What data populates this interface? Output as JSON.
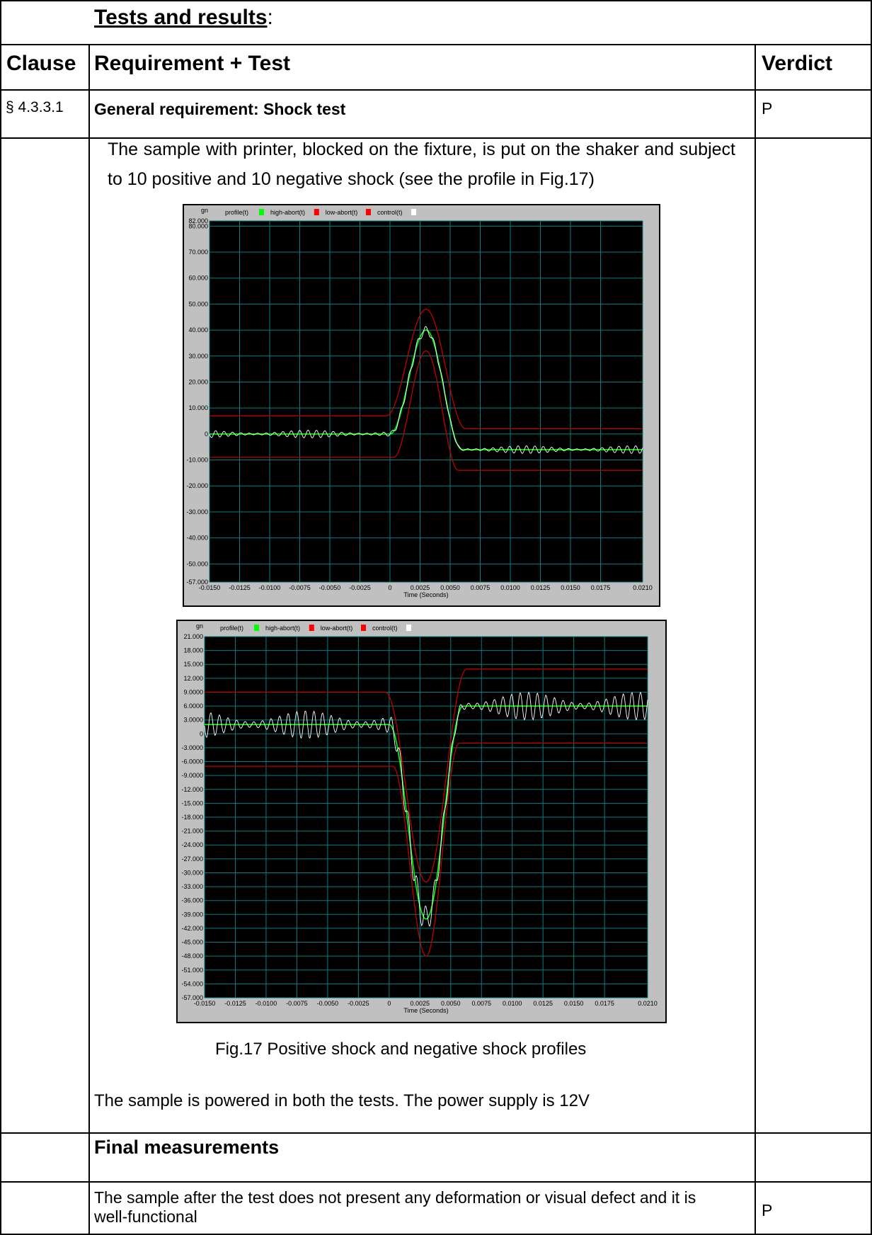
{
  "section_title": "Tests and results",
  "section_title_colon": ":",
  "headers": {
    "clause": "Clause",
    "requirement": "Requirement + Test",
    "verdict": "Verdict"
  },
  "row1": {
    "clause": "§ 4.3.3.1",
    "requirement": "General requirement: Shock test",
    "verdict": "P"
  },
  "row2": {
    "intro": "The sample with printer, blocked on the fixture, is put on the shaker and subject to 10 positive and 10 negative shock (see the profile in Fig.17)",
    "caption": "Fig.17 Positive shock and negative shock profiles",
    "power_note": "The sample is powered in both the tests. The power supply is 12V"
  },
  "row3": {
    "requirement": "Final measurements"
  },
  "row4": {
    "requirement": "The sample after the test does not present any deformation or visual defect and it is well-functional",
    "verdict": "P"
  },
  "chart_data": [
    {
      "type": "line",
      "title": "",
      "ylabel_unit": "gn",
      "xlabel": "Time (Seconds)",
      "legend": [
        "profile(t)",
        "high-abort(t)",
        "low-abort(t)",
        "control(t)"
      ],
      "legend_colors": [
        "#00ff00",
        "#ff0000",
        "#ff0000",
        "#ffffff"
      ],
      "ylim": [
        -57,
        82
      ],
      "xlim": [
        -0.015,
        0.021
      ],
      "y_ticks": [
        "82.000",
        "80.000",
        "70.000",
        "60.000",
        "50.000",
        "40.000",
        "30.000",
        "20.000",
        "10.000",
        "0",
        "-10.000",
        "-20.000",
        "-30.000",
        "-40.000",
        "-50.000",
        "-57.000"
      ],
      "y_tick_values": [
        82,
        80,
        70,
        60,
        50,
        40,
        30,
        20,
        10,
        0,
        -10,
        -20,
        -30,
        -40,
        -50,
        -57
      ],
      "x_ticks": [
        "-0.0150",
        "-0.0125",
        "-0.0100",
        "-0.0075",
        "-0.0050",
        "-0.0025",
        "0",
        "0.0025",
        "0.0050",
        "0.0075",
        "0.0100",
        "0.0125",
        "0.0150",
        "0.0175",
        "0.0210"
      ],
      "x_tick_values": [
        -0.015,
        -0.0125,
        -0.01,
        -0.0075,
        -0.005,
        -0.0025,
        0,
        0.0025,
        0.005,
        0.0075,
        0.01,
        0.0125,
        0.015,
        0.0175,
        0.021
      ],
      "profile": {
        "pre": 0,
        "peak": 40,
        "post": -6,
        "t_start": 0,
        "t_end": 0.006
      },
      "high_abort": {
        "pre": 7,
        "peak": 48,
        "post": 2
      },
      "low_abort": {
        "pre": -9,
        "peak": 32,
        "post": -14
      },
      "noise_amplitude": 1.5,
      "colors": {
        "profile": "#00ff00",
        "abort": "#c00000",
        "control": "#ffffff",
        "grid": "#008080",
        "bg": "#000000"
      }
    },
    {
      "type": "line",
      "title": "",
      "ylabel_unit": "gn",
      "xlabel": "Time (Seconds)",
      "legend": [
        "profile(t)",
        "high-abort(t)",
        "low-abort(t)",
        "control(t)"
      ],
      "legend_colors": [
        "#00ff00",
        "#ff0000",
        "#ff0000",
        "#ffffff"
      ],
      "ylim": [
        -57,
        21
      ],
      "xlim": [
        -0.015,
        0.021
      ],
      "y_ticks": [
        "21.000",
        "18.000",
        "15.000",
        "12.000",
        "9.0000",
        "6.0000",
        "3.0000",
        "0",
        "-3.0000",
        "-6.0000",
        "-9.0000",
        "-12.000",
        "-15.000",
        "-18.000",
        "-21.000",
        "-24.000",
        "-27.000",
        "-30.000",
        "-33.000",
        "-36.000",
        "-39.000",
        "-42.000",
        "-45.000",
        "-48.000",
        "-51.000",
        "-54.000",
        "-57.000"
      ],
      "y_tick_values": [
        21,
        18,
        15,
        12,
        9,
        6,
        3,
        0,
        -3,
        -6,
        -9,
        -12,
        -15,
        -18,
        -21,
        -24,
        -27,
        -30,
        -33,
        -36,
        -39,
        -42,
        -45,
        -48,
        -51,
        -54,
        -57
      ],
      "x_ticks": [
        "-0.0150",
        "-0.0125",
        "-0.0100",
        "-0.0075",
        "-0.0050",
        "-0.0025",
        "0",
        "0.0025",
        "0.0050",
        "0.0075",
        "0.0100",
        "0.0125",
        "0.0150",
        "0.0175",
        "0.0210"
      ],
      "x_tick_values": [
        -0.015,
        -0.0125,
        -0.01,
        -0.0075,
        -0.005,
        -0.0025,
        0,
        0.0025,
        0.005,
        0.0075,
        0.01,
        0.0125,
        0.015,
        0.0175,
        0.021
      ],
      "profile": {
        "pre": 2,
        "peak": -40,
        "post": 6,
        "t_start": 0,
        "t_end": 0.006
      },
      "high_abort": {
        "pre": 9,
        "peak": -32,
        "post": 14
      },
      "low_abort": {
        "pre": -7,
        "peak": -48,
        "post": -2
      },
      "noise_amplitude": 3,
      "colors": {
        "profile": "#00ff00",
        "abort": "#c00000",
        "control": "#ffffff",
        "grid": "#008080",
        "bg": "#000000"
      }
    }
  ]
}
